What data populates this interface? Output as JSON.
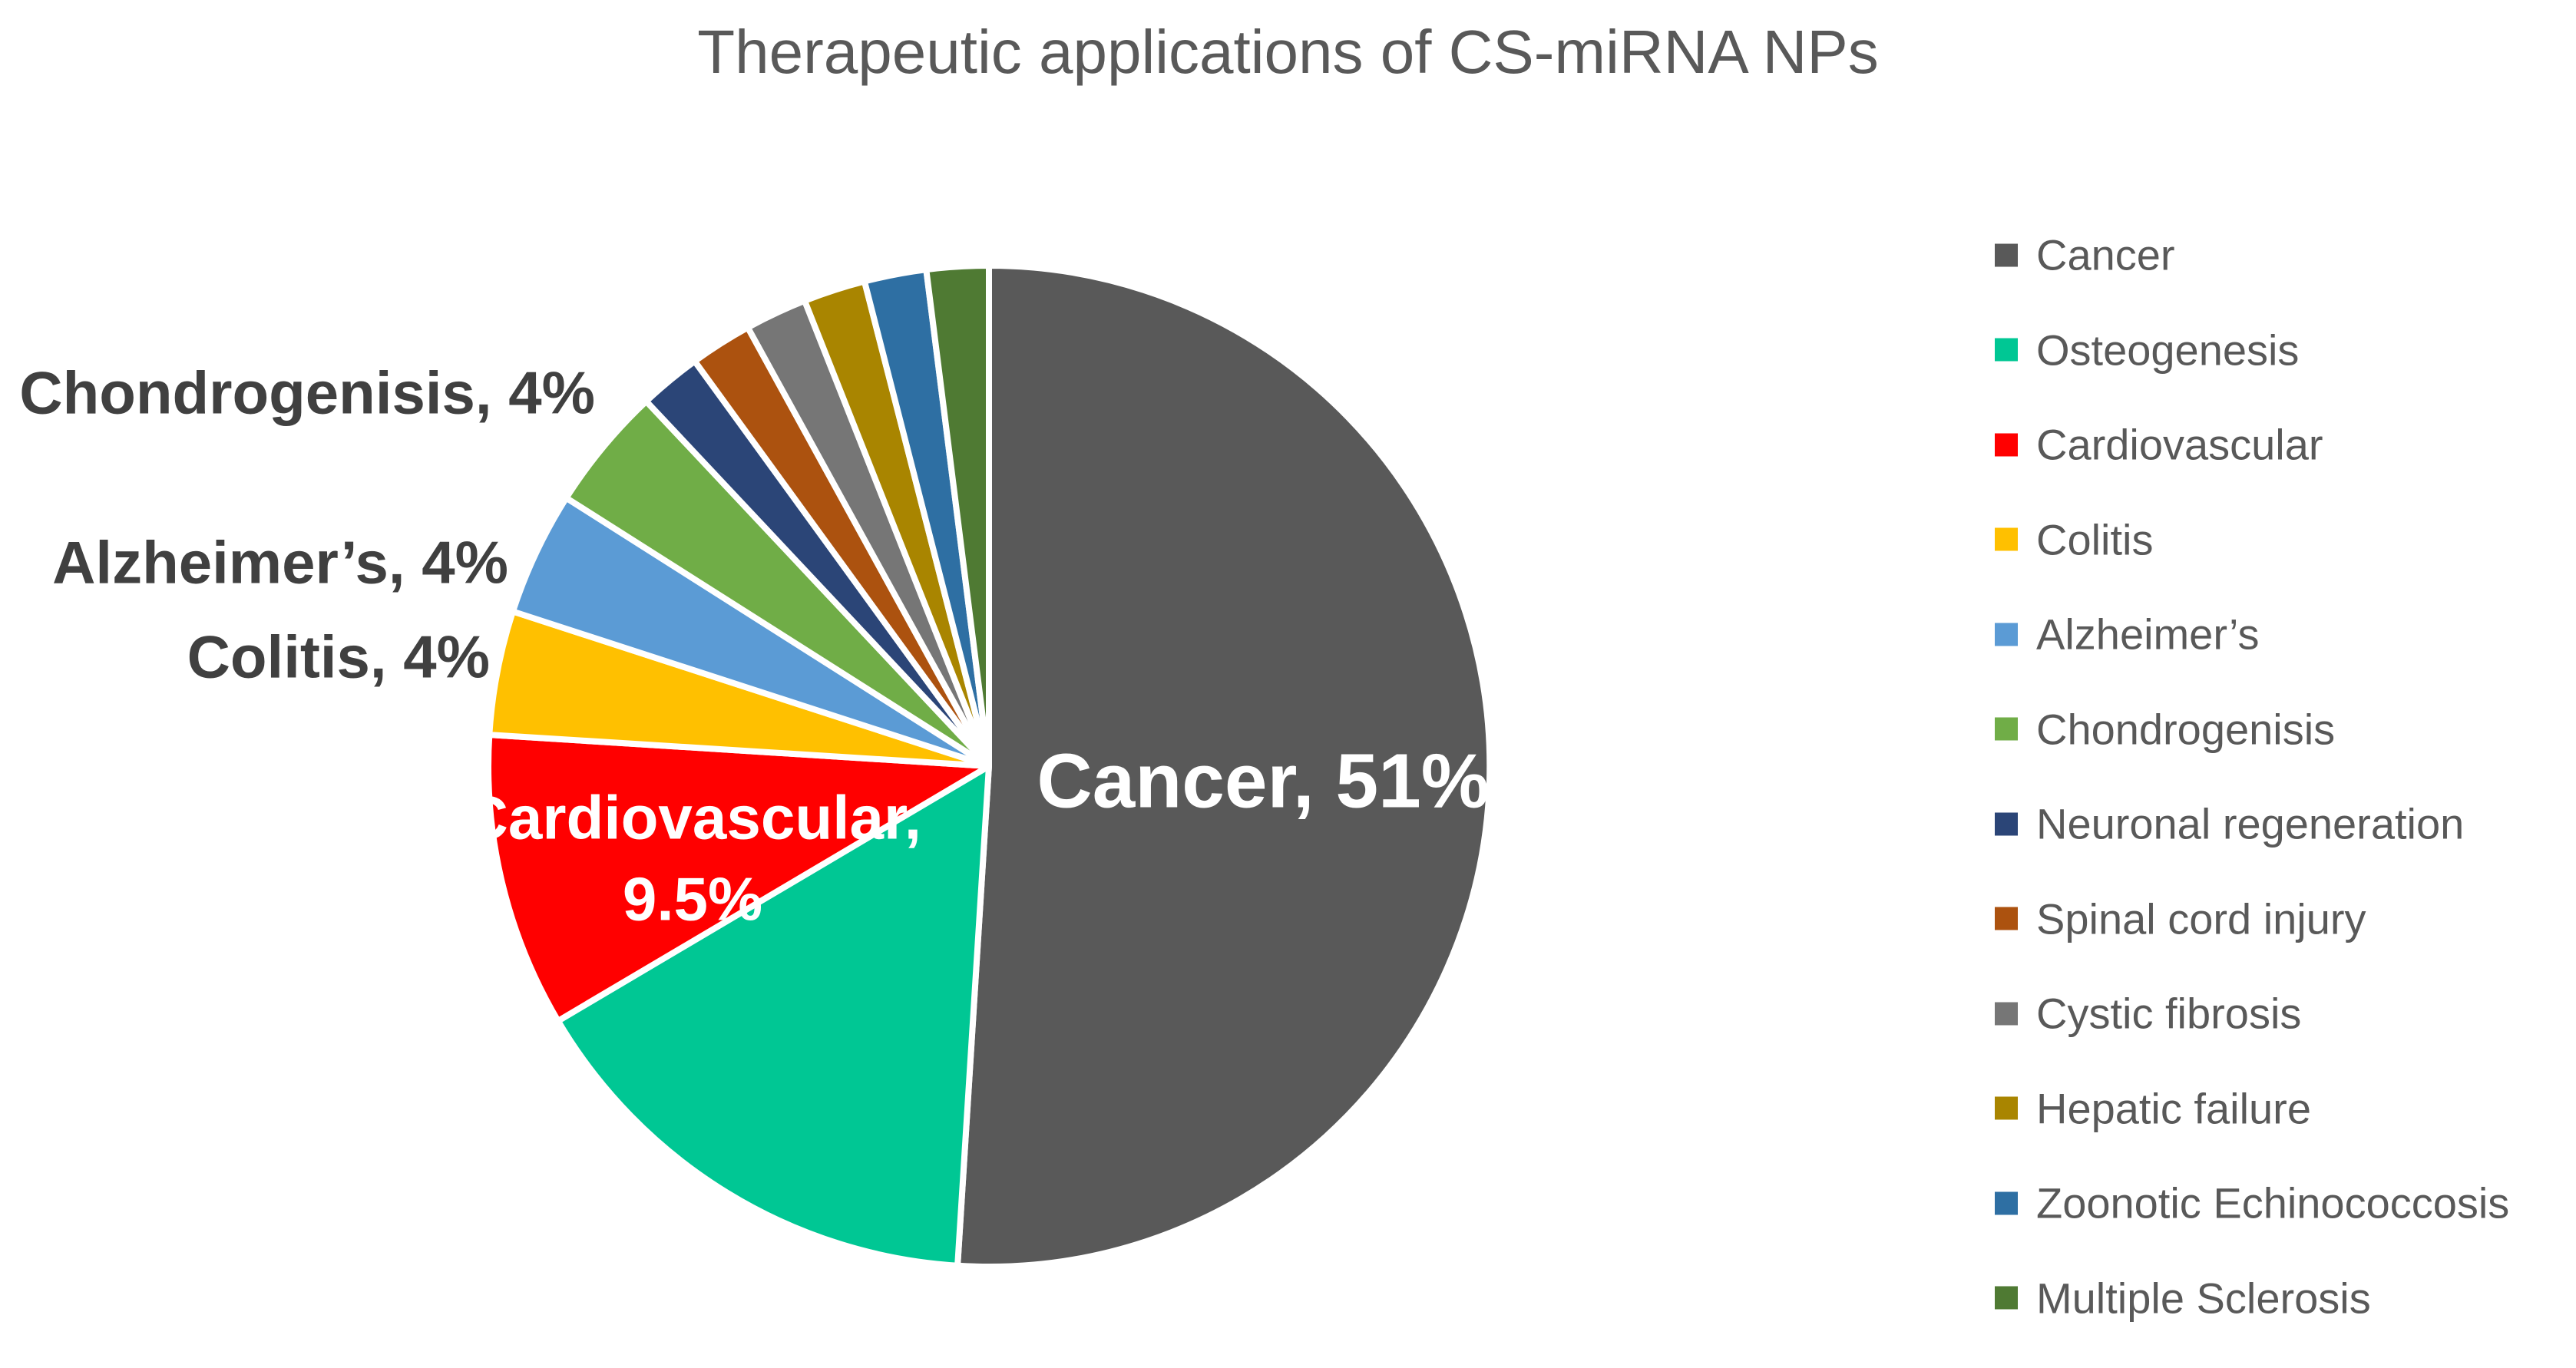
{
  "title": "Therapeutic applications of CS-miRNA NPs",
  "labels": {
    "cancer": "Cancer, 51%",
    "cardiovascular_line1": "Cardiovascular,",
    "cardiovascular_line2": "9.5%",
    "chondrogenisis": "Chondrogenisis, 4%",
    "alzheimers": "Alzheimer’s, 4%",
    "colitis": "Colitis, 4%"
  },
  "colors": {
    "title_text": "#595959",
    "inside_label_text": "#FFFFFF",
    "outside_label_text": "#404040",
    "slice_separator": "#FFFFFF",
    "background": "#FFFFFF"
  },
  "chart_data": {
    "type": "pie",
    "title": "Therapeutic applications of CS-miRNA NPs",
    "start_angle_deg": 0,
    "direction": "clockwise",
    "grid": false,
    "legend_position": "right",
    "slices": [
      {
        "label": "Cancer",
        "value": 51,
        "color": "#595959",
        "data_label": "Cancer, 51%"
      },
      {
        "label": "Osteogenesis",
        "value": 15.5,
        "color": "#00C794",
        "data_label": ""
      },
      {
        "label": "Cardiovascular",
        "value": 9.5,
        "color": "#FF0000",
        "data_label": "Cardiovascular, 9.5%"
      },
      {
        "label": "Colitis",
        "value": 4,
        "color": "#FFC000",
        "data_label": "Colitis, 4%"
      },
      {
        "label": "Alzheimer’s",
        "value": 4,
        "color": "#5B9BD5",
        "data_label": "Alzheimer’s, 4%"
      },
      {
        "label": "Chondrogenisis",
        "value": 4,
        "color": "#70AD47",
        "data_label": "Chondrogenisis, 4%"
      },
      {
        "label": "Neuronal regeneration",
        "value": 2,
        "color": "#2B4577",
        "data_label": ""
      },
      {
        "label": "Spinal cord injury",
        "value": 2,
        "color": "#AC520F",
        "data_label": ""
      },
      {
        "label": "Cystic fibrosis",
        "value": 2,
        "color": "#767676",
        "data_label": ""
      },
      {
        "label": "Hepatic failure",
        "value": 2,
        "color": "#A98500",
        "data_label": ""
      },
      {
        "label": "Zoonotic Echinococcosis",
        "value": 2,
        "color": "#2E6FA3",
        "data_label": ""
      },
      {
        "label": "Multiple Sclerosis",
        "value": 2,
        "color": "#4F7A33",
        "data_label": ""
      }
    ]
  }
}
